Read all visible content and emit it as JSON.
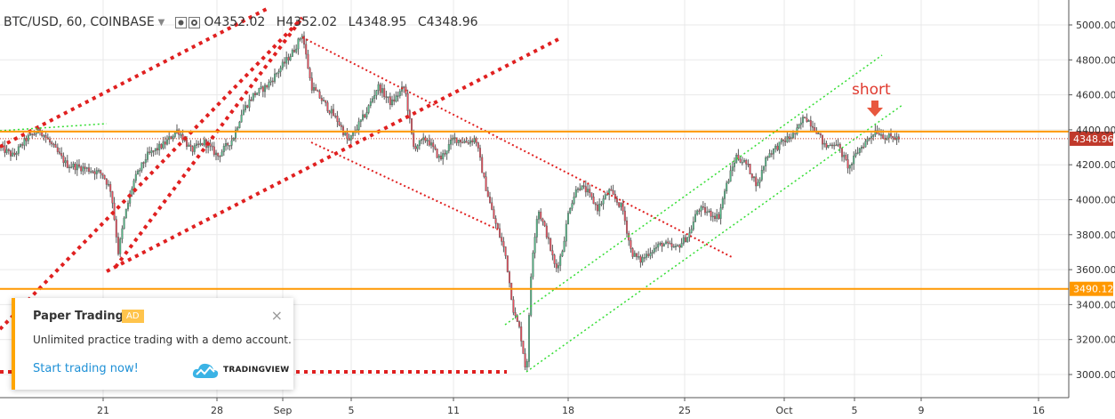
{
  "header": {
    "symbol": "BTC/USD, 60, COINBASE",
    "o_label": "O",
    "o_value": "4352.02",
    "h_label": "H",
    "h_value": "4352.02",
    "l_label": "L",
    "l_value": "4348.95",
    "c_label": "C",
    "c_value": "4348.96"
  },
  "chart_data": {
    "type": "candlestick",
    "ylim": [
      2900,
      5100
    ],
    "y_ticks": [
      5000,
      4800,
      4600,
      4400,
      4200,
      4000,
      3800,
      3600,
      3400,
      3200,
      3000
    ],
    "y_tick_labels": [
      "5000.00",
      "4800.00",
      "4600.00",
      "4400.00",
      "4200.00",
      "4000.00",
      "3800.00",
      "3600.00",
      "3400.00",
      "3200.00",
      "3000.00"
    ],
    "x_tick_labels": [
      "21",
      "28",
      "Sep",
      "5",
      "11",
      "18",
      "25",
      "Oct",
      "5",
      "9",
      "16"
    ],
    "price_badges": [
      {
        "value": 4348.96,
        "label": "4348.96",
        "color": "#c0392b"
      },
      {
        "value": 3490.12,
        "label": "3490.12",
        "color": "#ff9800"
      }
    ],
    "horizontal_lines": [
      {
        "value": 4390,
        "color": "#ff9800"
      },
      {
        "value": 3490.12,
        "color": "#ff9800"
      }
    ],
    "annotation": {
      "text": "short",
      "color": "#e03a2f"
    },
    "colors": {
      "up": "#53b987",
      "down": "#eb4d5c",
      "body": "#5a5a5a",
      "grid": "#e9e9ea",
      "red_trend": "#e02020",
      "green_trend": "#33dd33"
    }
  },
  "popup": {
    "title": "Paper Trading",
    "badge": "AD",
    "description": "Unlimited practice trading with a demo account.",
    "cta": "Start trading now!",
    "brand": "TRADINGVIEW",
    "close": "×"
  }
}
